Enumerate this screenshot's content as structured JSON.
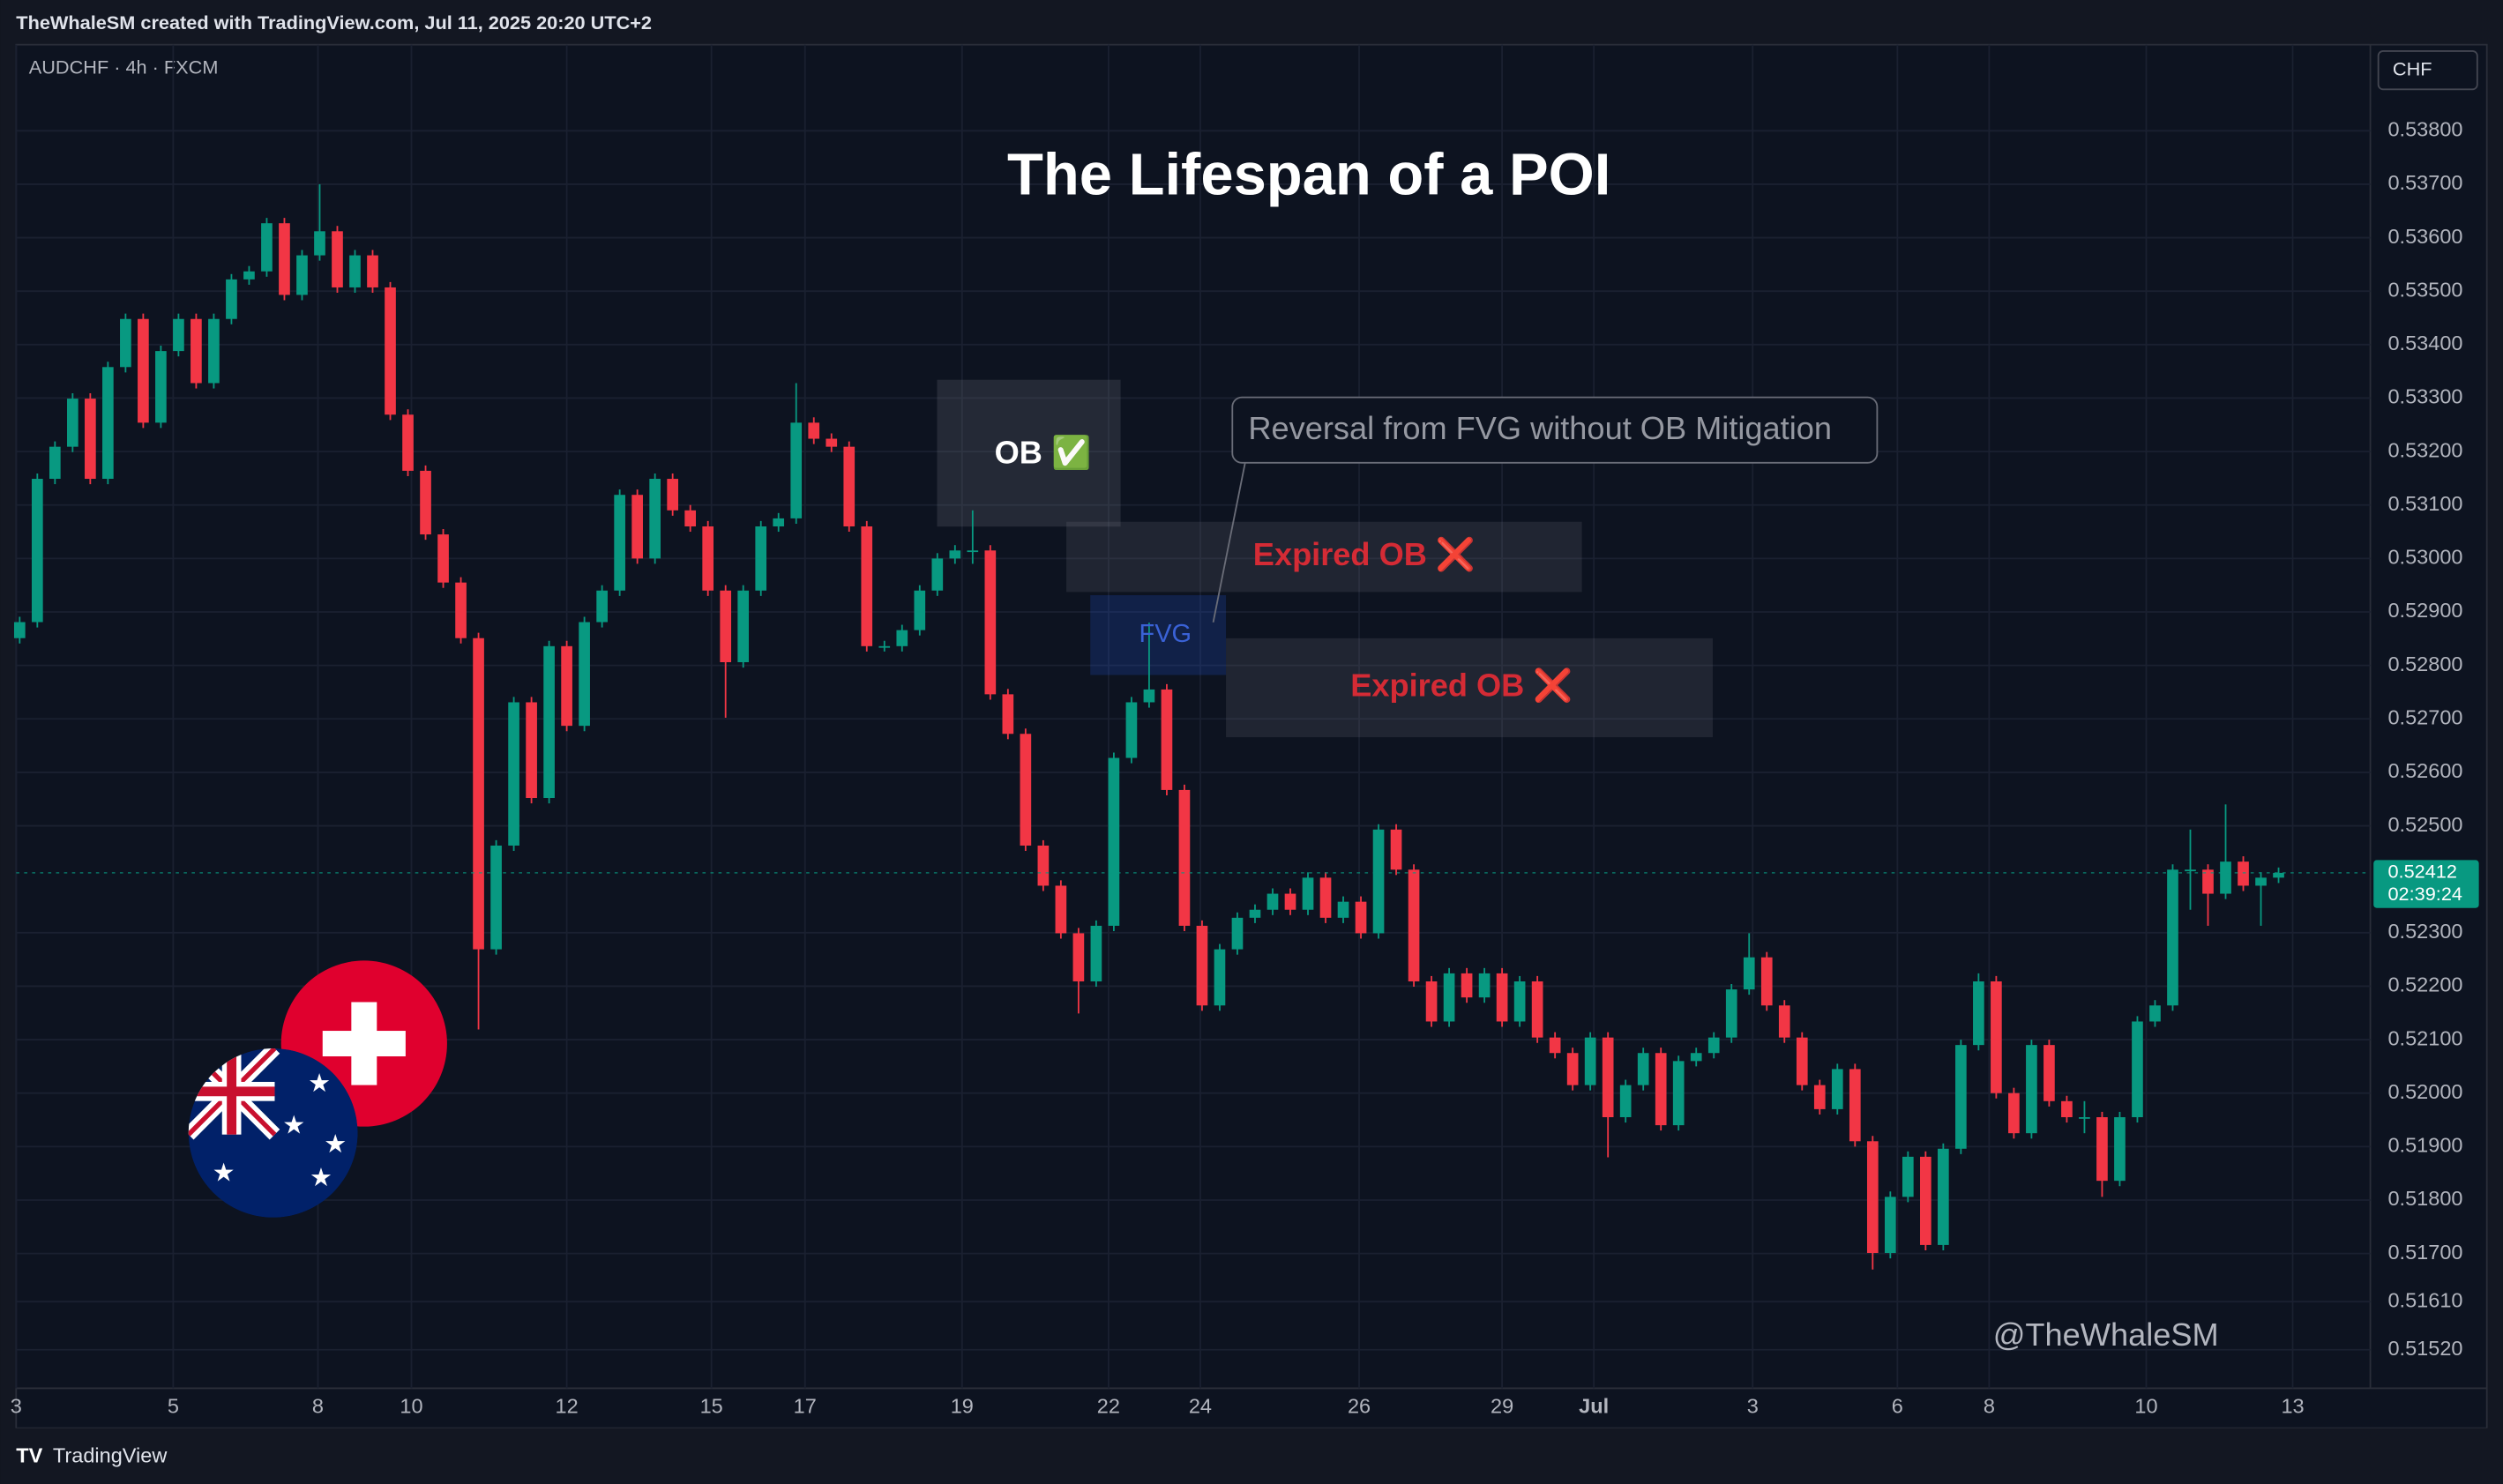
{
  "header": {
    "attribution": "TheWhaleSM created with TradingView.com, Jul 11, 2025 20:20 UTC+2"
  },
  "footer": {
    "brand": "TradingView"
  },
  "chart_data": {
    "type": "candlestick",
    "symbol": "AUDCHF · 4h · FXCM",
    "currency": "CHF",
    "title": "The Lifespan of a POI",
    "annotations": {
      "ob": "OB ✅",
      "expired_1": "Expired OB ❌",
      "expired_2": "Expired OB ❌",
      "fvg": "FVG",
      "callout": "Reversal from FVG without OB Mitigation",
      "watermark": "@TheWhaleSM"
    },
    "up_color": "#089981",
    "down_color": "#f23645",
    "last_price": 0.52412,
    "countdown": "02:39:24",
    "grid": true,
    "xlim": [
      -0.2,
      133.2
    ],
    "xticks": [
      {
        "value": -0.2,
        "label": "3"
      },
      {
        "value": 8.7,
        "label": "5"
      },
      {
        "value": 16.9,
        "label": "8"
      },
      {
        "value": 22.2,
        "label": "10"
      },
      {
        "value": 31.0,
        "label": "12"
      },
      {
        "value": 39.2,
        "label": "15"
      },
      {
        "value": 44.5,
        "label": "17"
      },
      {
        "value": 53.4,
        "label": "19"
      },
      {
        "value": 61.7,
        "label": "22"
      },
      {
        "value": 66.9,
        "label": "24"
      },
      {
        "value": 75.9,
        "label": "26"
      },
      {
        "value": 84.0,
        "label": "29"
      },
      {
        "value": 89.2,
        "label": "Jul"
      },
      {
        "value": 98.2,
        "label": "3"
      },
      {
        "value": 106.4,
        "label": "6"
      },
      {
        "value": 111.6,
        "label": "8"
      },
      {
        "value": 120.5,
        "label": "10"
      },
      {
        "value": 128.8,
        "label": "13"
      }
    ],
    "ylim": [
      0.51448,
      0.53961
    ],
    "yticks": [
      {
        "value": 0.538,
        "label": "0.53800"
      },
      {
        "value": 0.537,
        "label": "0.53700"
      },
      {
        "value": 0.536,
        "label": "0.53600"
      },
      {
        "value": 0.535,
        "label": "0.53500"
      },
      {
        "value": 0.534,
        "label": "0.53400"
      },
      {
        "value": 0.533,
        "label": "0.53300"
      },
      {
        "value": 0.532,
        "label": "0.53200"
      },
      {
        "value": 0.531,
        "label": "0.53100"
      },
      {
        "value": 0.53,
        "label": "0.53000"
      },
      {
        "value": 0.529,
        "label": "0.52900"
      },
      {
        "value": 0.528,
        "label": "0.52800"
      },
      {
        "value": 0.527,
        "label": "0.52700"
      },
      {
        "value": 0.526,
        "label": "0.52600"
      },
      {
        "value": 0.525,
        "label": "0.52500"
      },
      {
        "value": 0.523,
        "label": "0.52300"
      },
      {
        "value": 0.522,
        "label": "0.52200"
      },
      {
        "value": 0.521,
        "label": "0.52100"
      },
      {
        "value": 0.52,
        "label": "0.52000"
      },
      {
        "value": 0.519,
        "label": "0.51900"
      },
      {
        "value": 0.518,
        "label": "0.51800"
      },
      {
        "value": 0.517,
        "label": "0.51700"
      },
      {
        "value": 0.5161,
        "label": "0.51610"
      },
      {
        "value": 0.5152,
        "label": "0.51520"
      }
    ],
    "candles": [
      [
        0.52851,
        0.52891,
        0.52841,
        0.52881
      ],
      [
        0.52881,
        0.53159,
        0.52871,
        0.53149
      ],
      [
        0.53149,
        0.53219,
        0.53139,
        0.53209
      ],
      [
        0.53209,
        0.53309,
        0.53199,
        0.53299
      ],
      [
        0.53299,
        0.53309,
        0.53139,
        0.53149
      ],
      [
        0.53149,
        0.53368,
        0.53139,
        0.53358
      ],
      [
        0.53358,
        0.53458,
        0.53348,
        0.53448
      ],
      [
        0.53448,
        0.53458,
        0.53244,
        0.53254
      ],
      [
        0.53254,
        0.53398,
        0.53244,
        0.53388
      ],
      [
        0.53388,
        0.53458,
        0.53378,
        0.53448
      ],
      [
        0.53448,
        0.53458,
        0.53318,
        0.53328
      ],
      [
        0.53328,
        0.53458,
        0.53318,
        0.53448
      ],
      [
        0.53448,
        0.53532,
        0.53438,
        0.53522
      ],
      [
        0.53522,
        0.53547,
        0.53512,
        0.53537
      ],
      [
        0.53537,
        0.53637,
        0.53527,
        0.53627
      ],
      [
        0.53627,
        0.53637,
        0.53483,
        0.53493
      ],
      [
        0.53493,
        0.53577,
        0.53483,
        0.53567
      ],
      [
        0.53567,
        0.537,
        0.53557,
        0.53612
      ],
      [
        0.53612,
        0.53622,
        0.53497,
        0.53507
      ],
      [
        0.53507,
        0.53577,
        0.53497,
        0.53567
      ],
      [
        0.53567,
        0.53577,
        0.53497,
        0.53507
      ],
      [
        0.53507,
        0.53517,
        0.53259,
        0.53269
      ],
      [
        0.53269,
        0.53279,
        0.53154,
        0.53164
      ],
      [
        0.53164,
        0.53174,
        0.53035,
        0.53045
      ],
      [
        0.53045,
        0.53055,
        0.52945,
        0.52955
      ],
      [
        0.52955,
        0.52965,
        0.52841,
        0.52851
      ],
      [
        0.52851,
        0.52861,
        0.52119,
        0.52269
      ],
      [
        0.52269,
        0.52473,
        0.52259,
        0.52463
      ],
      [
        0.52463,
        0.52741,
        0.52453,
        0.52731
      ],
      [
        0.52731,
        0.52741,
        0.52542,
        0.52552
      ],
      [
        0.52552,
        0.52846,
        0.52542,
        0.52836
      ],
      [
        0.52836,
        0.52846,
        0.52677,
        0.52687
      ],
      [
        0.52687,
        0.52891,
        0.52677,
        0.52881
      ],
      [
        0.52881,
        0.5295,
        0.52871,
        0.5294
      ],
      [
        0.5294,
        0.53129,
        0.5293,
        0.53119
      ],
      [
        0.53119,
        0.53129,
        0.5299,
        0.53
      ],
      [
        0.53,
        0.53159,
        0.5299,
        0.53149
      ],
      [
        0.53149,
        0.53159,
        0.5308,
        0.5309
      ],
      [
        0.5309,
        0.531,
        0.5305,
        0.5306
      ],
      [
        0.5306,
        0.5307,
        0.5293,
        0.5294
      ],
      [
        0.5294,
        0.5295,
        0.52702,
        0.52806
      ],
      [
        0.52806,
        0.5295,
        0.52796,
        0.5294
      ],
      [
        0.5294,
        0.5307,
        0.5293,
        0.5306
      ],
      [
        0.5306,
        0.53085,
        0.5305,
        0.53075
      ],
      [
        0.53075,
        0.53328,
        0.53065,
        0.53254
      ],
      [
        0.53254,
        0.53264,
        0.53214,
        0.53224
      ],
      [
        0.53224,
        0.53234,
        0.53199,
        0.53209
      ],
      [
        0.53209,
        0.53219,
        0.5305,
        0.5306
      ],
      [
        0.5306,
        0.5307,
        0.52826,
        0.52836
      ],
      [
        0.52836,
        0.52846,
        0.52826,
        0.52836
      ],
      [
        0.52836,
        0.52876,
        0.52826,
        0.52866
      ],
      [
        0.52866,
        0.5295,
        0.52856,
        0.5294
      ],
      [
        0.5294,
        0.5301,
        0.5293,
        0.53
      ],
      [
        0.53,
        0.53025,
        0.5299,
        0.53015
      ],
      [
        0.53015,
        0.5309,
        0.5299,
        0.53015
      ],
      [
        0.53015,
        0.53025,
        0.52736,
        0.52746
      ],
      [
        0.52746,
        0.52756,
        0.52662,
        0.52672
      ],
      [
        0.52672,
        0.52682,
        0.52453,
        0.52463
      ],
      [
        0.52463,
        0.52473,
        0.52378,
        0.52388
      ],
      [
        0.52388,
        0.52398,
        0.52289,
        0.52299
      ],
      [
        0.52299,
        0.52309,
        0.52149,
        0.52209
      ],
      [
        0.52209,
        0.52323,
        0.52199,
        0.52313
      ],
      [
        0.52313,
        0.52637,
        0.52303,
        0.52627
      ],
      [
        0.52627,
        0.52741,
        0.52617,
        0.52731
      ],
      [
        0.52731,
        0.5288,
        0.52721,
        0.52755
      ],
      [
        0.52755,
        0.52765,
        0.52557,
        0.52567
      ],
      [
        0.52567,
        0.52577,
        0.52303,
        0.52313
      ],
      [
        0.52313,
        0.52323,
        0.52154,
        0.52164
      ],
      [
        0.52164,
        0.52279,
        0.52154,
        0.52269
      ],
      [
        0.52269,
        0.52338,
        0.52259,
        0.52328
      ],
      [
        0.52328,
        0.52353,
        0.52318,
        0.52343
      ],
      [
        0.52343,
        0.52383,
        0.52333,
        0.52373
      ],
      [
        0.52373,
        0.52383,
        0.52333,
        0.52343
      ],
      [
        0.52343,
        0.52413,
        0.52333,
        0.52403
      ],
      [
        0.52403,
        0.52413,
        0.52318,
        0.52328
      ],
      [
        0.52328,
        0.52368,
        0.52318,
        0.52358
      ],
      [
        0.52358,
        0.52368,
        0.52289,
        0.52299
      ],
      [
        0.52299,
        0.52503,
        0.52289,
        0.52493
      ],
      [
        0.52493,
        0.52503,
        0.52408,
        0.52418
      ],
      [
        0.52418,
        0.52428,
        0.52199,
        0.52209
      ],
      [
        0.52209,
        0.52219,
        0.52124,
        0.52134
      ],
      [
        0.52134,
        0.52234,
        0.52124,
        0.52224
      ],
      [
        0.52224,
        0.52234,
        0.52169,
        0.52179
      ],
      [
        0.52179,
        0.52234,
        0.52169,
        0.52224
      ],
      [
        0.52224,
        0.52234,
        0.52124,
        0.52134
      ],
      [
        0.52134,
        0.52219,
        0.52124,
        0.52209
      ],
      [
        0.52209,
        0.52219,
        0.52094,
        0.52104
      ],
      [
        0.52104,
        0.52114,
        0.52065,
        0.52075
      ],
      [
        0.52075,
        0.52085,
        0.52005,
        0.52015
      ],
      [
        0.52015,
        0.52114,
        0.52005,
        0.52104
      ],
      [
        0.52104,
        0.52114,
        0.5188,
        0.51955
      ],
      [
        0.51955,
        0.52025,
        0.51945,
        0.52015
      ],
      [
        0.52015,
        0.52085,
        0.52005,
        0.52075
      ],
      [
        0.52075,
        0.52085,
        0.5193,
        0.5194
      ],
      [
        0.5194,
        0.5207,
        0.5193,
        0.5206
      ],
      [
        0.5206,
        0.52085,
        0.5205,
        0.52075
      ],
      [
        0.52075,
        0.52114,
        0.52065,
        0.52104
      ],
      [
        0.52104,
        0.52204,
        0.52094,
        0.52194
      ],
      [
        0.52194,
        0.52299,
        0.52184,
        0.52254
      ],
      [
        0.52254,
        0.52264,
        0.52154,
        0.52164
      ],
      [
        0.52164,
        0.52174,
        0.52094,
        0.52104
      ],
      [
        0.52104,
        0.52114,
        0.52005,
        0.52015
      ],
      [
        0.52015,
        0.52025,
        0.5196,
        0.5197
      ],
      [
        0.5197,
        0.52055,
        0.5196,
        0.52045
      ],
      [
        0.52045,
        0.52055,
        0.519,
        0.5191
      ],
      [
        0.5191,
        0.5192,
        0.5167,
        0.51701
      ],
      [
        0.51701,
        0.51816,
        0.51691,
        0.51806
      ],
      [
        0.51806,
        0.51891,
        0.51796,
        0.51881
      ],
      [
        0.51881,
        0.51891,
        0.51706,
        0.51716
      ],
      [
        0.51716,
        0.51906,
        0.51706,
        0.51896
      ],
      [
        0.51896,
        0.521,
        0.51886,
        0.5209
      ],
      [
        0.5209,
        0.52224,
        0.5208,
        0.52209
      ],
      [
        0.52209,
        0.52219,
        0.5199,
        0.52
      ],
      [
        0.52,
        0.5201,
        0.51915,
        0.51925
      ],
      [
        0.51925,
        0.521,
        0.51915,
        0.5209
      ],
      [
        0.5209,
        0.521,
        0.51975,
        0.51985
      ],
      [
        0.51985,
        0.51995,
        0.51945,
        0.51955
      ],
      [
        0.51955,
        0.51985,
        0.51925,
        0.51955
      ],
      [
        0.51955,
        0.51965,
        0.51806,
        0.51836
      ],
      [
        0.51836,
        0.51965,
        0.51826,
        0.51955
      ],
      [
        0.51955,
        0.52144,
        0.51945,
        0.52134
      ],
      [
        0.52134,
        0.52174,
        0.52124,
        0.52164
      ],
      [
        0.52164,
        0.52428,
        0.52154,
        0.52418
      ],
      [
        0.52418,
        0.52493,
        0.52343,
        0.52418
      ],
      [
        0.52418,
        0.52428,
        0.52313,
        0.52373
      ],
      [
        0.52373,
        0.5254,
        0.52363,
        0.52433
      ],
      [
        0.52433,
        0.52443,
        0.52378,
        0.52388
      ],
      [
        0.52388,
        0.52413,
        0.52313,
        0.52403
      ],
      [
        0.52403,
        0.52422,
        0.52393,
        0.52412
      ]
    ]
  }
}
